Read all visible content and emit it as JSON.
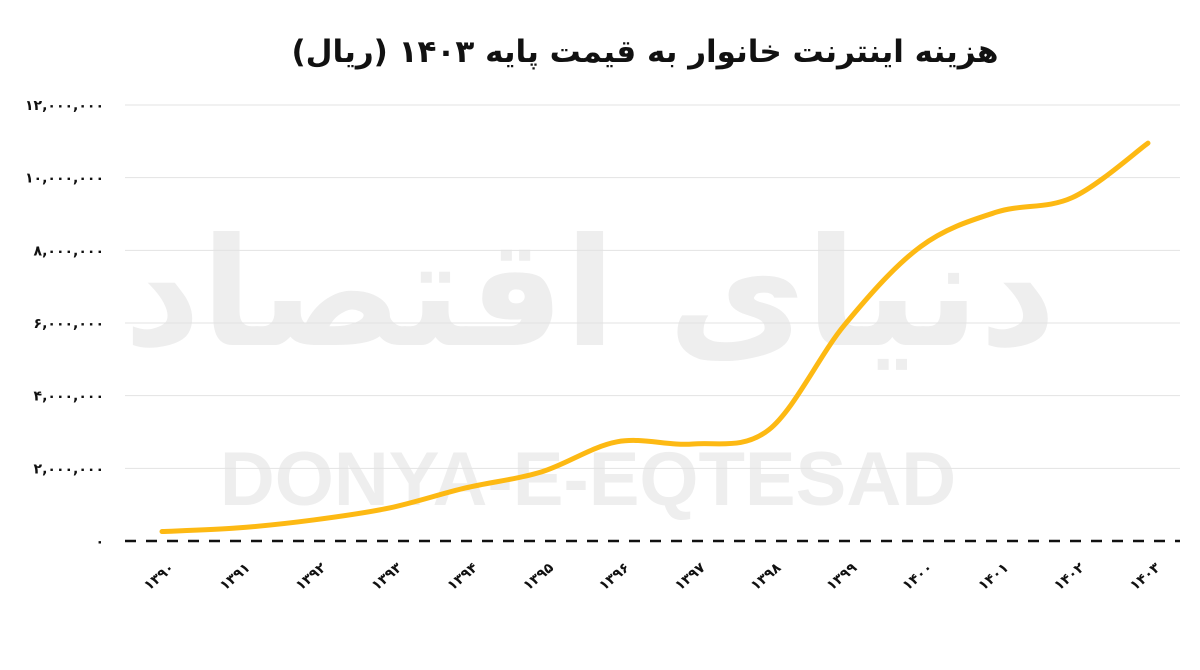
{
  "title": "هزینه اینترنت خانوار به قیمت پایه ۱۴۰۳ (ریال)",
  "watermark": {
    "latin": "DONYA-E-EQTESAD",
    "persian": "دنیای اقتصاد"
  },
  "colors": {
    "line": "#FDB913",
    "grid": "#e3e3e3",
    "baseline": "#111111",
    "watermark": "#eeeeee"
  },
  "chart_data": {
    "type": "line",
    "title": "هزینه اینترنت خانوار به قیمت پایه ۱۴۰۳ (ریال)",
    "xlabel": "",
    "ylabel": "",
    "categories": [
      "۱۳۹۰",
      "۱۳۹۱",
      "۱۳۹۲",
      "۱۳۹۳",
      "۱۳۹۴",
      "۱۳۹۵",
      "۱۳۹۶",
      "۱۳۹۷",
      "۱۳۹۸",
      "۱۳۹۹",
      "۱۴۰۰",
      "۱۴۰۱",
      "۱۴۰۲",
      "۱۴۰۳"
    ],
    "x": [
      1390,
      1391,
      1392,
      1393,
      1394,
      1395,
      1396,
      1397,
      1398,
      1399,
      1400,
      1401,
      1402,
      1403
    ],
    "series": [
      {
        "name": "هزینه اینترنت خانوار",
        "values": [
          260000,
          360000,
          580000,
          910000,
          1460000,
          1900000,
          2730000,
          2670000,
          3060000,
          5950000,
          8100000,
          9050000,
          9450000,
          10950000
        ]
      }
    ],
    "yticks": [
      0,
      2000000,
      4000000,
      6000000,
      8000000,
      10000000,
      12000000
    ],
    "ytick_labels": [
      "۰",
      "۲,۰۰۰,۰۰۰",
      "۴,۰۰۰,۰۰۰",
      "۶,۰۰۰,۰۰۰",
      "۸,۰۰۰,۰۰۰",
      "۱۰,۰۰۰,۰۰۰",
      "۱۲,۰۰۰,۰۰۰"
    ],
    "ylim": [
      0,
      12000000
    ],
    "grid": true,
    "legend": "none",
    "line_style": "smooth"
  }
}
